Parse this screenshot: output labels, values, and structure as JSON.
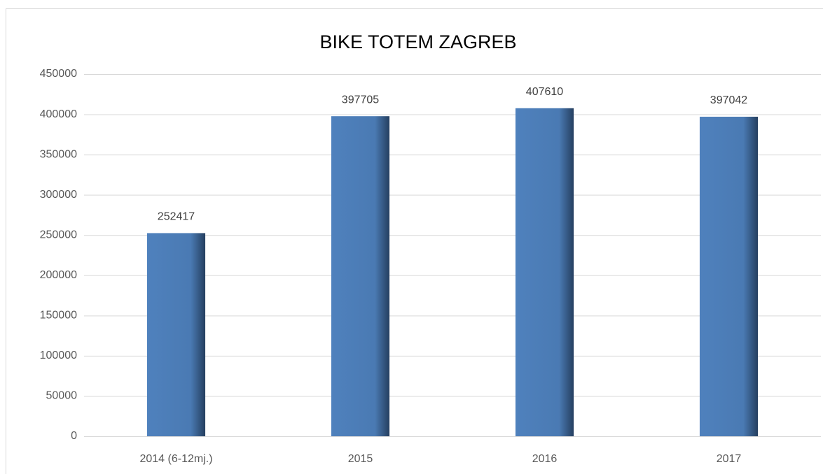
{
  "chart_data": {
    "type": "bar",
    "title": "BIKE TOTEM ZAGREB",
    "categories": [
      "2014 (6-12mj.)",
      "2015",
      "2016",
      "2017"
    ],
    "values": [
      252417,
      397705,
      407610,
      397042
    ],
    "color": "#4f81bd",
    "ylim": [
      0,
      450000
    ],
    "yticks": [
      0,
      50000,
      100000,
      150000,
      200000,
      250000,
      300000,
      350000,
      400000,
      450000
    ],
    "grid": true
  }
}
